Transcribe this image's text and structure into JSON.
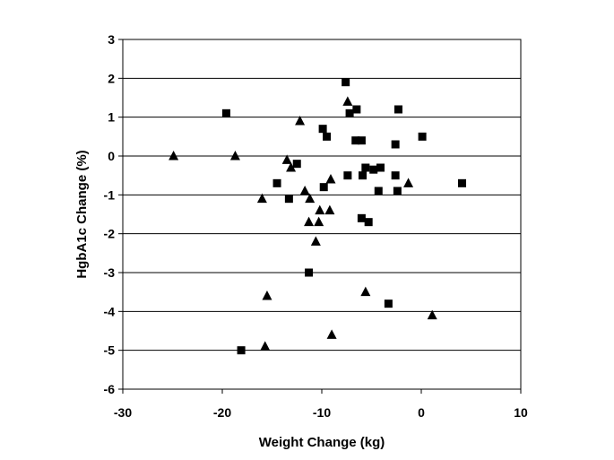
{
  "chart_data": {
    "type": "scatter",
    "title": "",
    "xlabel": "Weight Change (kg)",
    "ylabel": "HgbA1c Change (%)",
    "xlim": [
      -30,
      10
    ],
    "ylim": [
      -6,
      3
    ],
    "xticks": [
      -30,
      -20,
      -10,
      0,
      10
    ],
    "yticks": [
      3,
      2,
      1,
      0,
      -1,
      -2,
      -3,
      -4,
      -5,
      -6
    ],
    "xtick_labels": [
      "-30",
      "-20",
      "-10",
      "0",
      "10"
    ],
    "ytick_labels": [
      "3",
      "2",
      "1",
      "0",
      "-1",
      "-2",
      "-3",
      "-4",
      "-5",
      "-6"
    ],
    "grid": "horizontal major gridlines",
    "legend": "none",
    "series": [
      {
        "marker": "square",
        "color": "#000000",
        "points": [
          [
            -19.6,
            1.1
          ],
          [
            -7.6,
            1.9
          ],
          [
            -6.5,
            1.2
          ],
          [
            -7.2,
            1.1
          ],
          [
            -2.3,
            1.2
          ],
          [
            -9.9,
            0.7
          ],
          [
            -9.5,
            0.5
          ],
          [
            -6.6,
            0.4
          ],
          [
            -6.0,
            0.4
          ],
          [
            -2.6,
            0.3
          ],
          [
            0.1,
            0.5
          ],
          [
            -12.5,
            -0.2
          ],
          [
            -5.6,
            -0.3
          ],
          [
            -4.8,
            -0.35
          ],
          [
            -4.1,
            -0.3
          ],
          [
            -7.4,
            -0.5
          ],
          [
            -5.9,
            -0.5
          ],
          [
            -2.6,
            -0.5
          ],
          [
            -14.5,
            -0.7
          ],
          [
            -9.8,
            -0.8
          ],
          [
            -4.3,
            -0.9
          ],
          [
            -2.4,
            -0.9
          ],
          [
            4.1,
            -0.7
          ],
          [
            -13.3,
            -1.1
          ],
          [
            -6.0,
            -1.6
          ],
          [
            -5.3,
            -1.7
          ],
          [
            -11.3,
            -3.0
          ],
          [
            -3.3,
            -3.8
          ],
          [
            -18.1,
            -5.0
          ]
        ]
      },
      {
        "marker": "triangle",
        "color": "#000000",
        "points": [
          [
            -24.9,
            0.0
          ],
          [
            -18.7,
            0.0
          ],
          [
            -12.2,
            0.9
          ],
          [
            -7.4,
            1.4
          ],
          [
            -13.5,
            -0.1
          ],
          [
            -13.1,
            -0.3
          ],
          [
            -11.7,
            -0.9
          ],
          [
            -11.2,
            -1.1
          ],
          [
            -9.1,
            -0.6
          ],
          [
            -16.0,
            -1.1
          ],
          [
            -1.3,
            -0.7
          ],
          [
            -10.2,
            -1.4
          ],
          [
            -9.2,
            -1.4
          ],
          [
            -11.3,
            -1.7
          ],
          [
            -10.3,
            -1.7
          ],
          [
            -10.6,
            -2.2
          ],
          [
            -15.5,
            -3.6
          ],
          [
            -5.6,
            -3.5
          ],
          [
            -15.7,
            -4.9
          ],
          [
            -9.0,
            -4.6
          ],
          [
            1.1,
            -4.1
          ]
        ]
      }
    ]
  }
}
